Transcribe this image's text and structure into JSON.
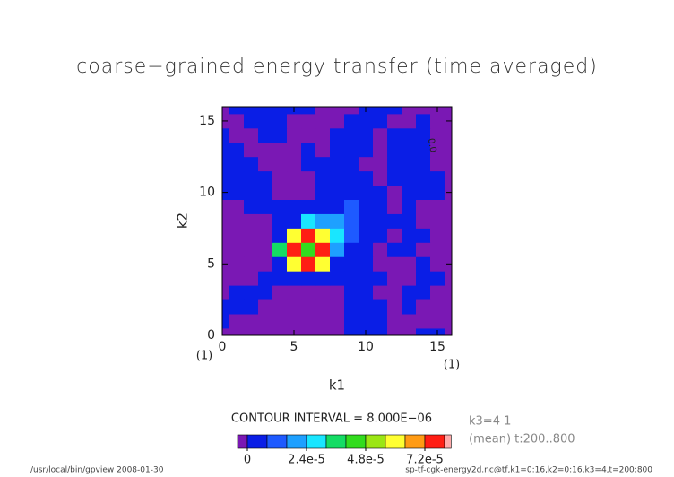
{
  "chart_data": {
    "type": "contour",
    "title": "coarse−grained energy transfer (time averaged)",
    "xlabel": "k1",
    "ylabel": "k2",
    "xunit": "(1)",
    "yunit": "(1)",
    "xlim": [
      0,
      16
    ],
    "ylim": [
      0,
      16
    ],
    "xticks": [
      0,
      5,
      10,
      15
    ],
    "yticks": [
      0,
      5,
      10,
      15
    ],
    "x": [
      0,
      1,
      2,
      3,
      4,
      5,
      6,
      7,
      8,
      9,
      10,
      11,
      12,
      13,
      14,
      15,
      16
    ],
    "y": [
      0,
      1,
      2,
      3,
      4,
      5,
      6,
      7,
      8,
      9,
      10,
      11,
      12,
      13,
      14,
      15,
      16
    ],
    "z": [
      [
        -4e-06,
        -4e-06,
        -4e-06,
        -4e-06,
        -4e-06,
        -4e-06,
        -4e-06,
        -4e-06,
        -4e-06,
        4e-06,
        4e-06,
        4e-06,
        -4e-06,
        -4e-06,
        4e-06,
        4e-06,
        -4e-06
      ],
      [
        4e-06,
        -4e-06,
        -4e-06,
        -4e-06,
        -4e-06,
        -4e-06,
        -4e-06,
        -4e-06,
        -4e-06,
        4e-06,
        4e-06,
        4e-06,
        -4e-06,
        -4e-06,
        -4e-06,
        -4e-06,
        -4e-06
      ],
      [
        4e-06,
        4e-06,
        4e-06,
        -4e-06,
        -4e-06,
        -4e-06,
        -4e-06,
        -4e-06,
        -4e-06,
        4e-06,
        4e-06,
        4e-06,
        -4e-06,
        4e-06,
        -4e-06,
        -4e-06,
        -4e-06
      ],
      [
        -4e-06,
        4e-06,
        4e-06,
        4e-06,
        -4e-06,
        -4e-06,
        -4e-06,
        -4e-06,
        -4e-06,
        4e-06,
        4e-06,
        -4e-06,
        -4e-06,
        4e-06,
        4e-06,
        -4e-06,
        -4e-06
      ],
      [
        -4e-06,
        -4e-06,
        -4e-06,
        4e-06,
        4e-06,
        4e-06,
        4e-06,
        4e-06,
        4e-06,
        4e-06,
        4e-06,
        4e-06,
        -4e-06,
        -4e-06,
        4e-06,
        4e-06,
        -4e-06
      ],
      [
        -4e-06,
        -4e-06,
        -4e-06,
        -4e-06,
        4e-06,
        6e-05,
        7.6e-05,
        6e-05,
        4e-06,
        4e-06,
        4e-06,
        -4e-06,
        -4e-06,
        -4e-06,
        4e-06,
        -4e-06,
        -4e-06
      ],
      [
        -4e-06,
        -4e-06,
        -4e-06,
        -4e-06,
        3.6e-05,
        7.6e-05,
        4.4e-05,
        7.6e-05,
        2e-05,
        4e-06,
        4e-06,
        -4e-06,
        4e-06,
        4e-06,
        -4e-06,
        -4e-06,
        -4e-06
      ],
      [
        -4e-06,
        -4e-06,
        -4e-06,
        -4e-06,
        4e-06,
        6e-05,
        7.6e-05,
        6e-05,
        2.8e-05,
        1.2e-05,
        4e-06,
        4e-06,
        -4e-06,
        4e-06,
        4e-06,
        -4e-06,
        -4e-06
      ],
      [
        -4e-06,
        -4e-06,
        -4e-06,
        -4e-06,
        4e-06,
        4e-06,
        2.8e-05,
        2e-05,
        2e-05,
        1.2e-05,
        4e-06,
        4e-06,
        4e-06,
        4e-06,
        -4e-06,
        -4e-06,
        -4e-06
      ],
      [
        -4e-06,
        -4e-06,
        4e-06,
        4e-06,
        4e-06,
        4e-06,
        4e-06,
        4e-06,
        4e-06,
        1.2e-05,
        4e-06,
        4e-06,
        -4e-06,
        4e-06,
        -4e-06,
        -4e-06,
        -4e-06
      ],
      [
        4e-06,
        4e-06,
        4e-06,
        4e-06,
        -4e-06,
        -4e-06,
        -4e-06,
        4e-06,
        4e-06,
        4e-06,
        4e-06,
        4e-06,
        -4e-06,
        4e-06,
        4e-06,
        4e-06,
        -4e-06
      ],
      [
        4e-06,
        4e-06,
        4e-06,
        4e-06,
        -4e-06,
        -4e-06,
        -4e-06,
        4e-06,
        4e-06,
        4e-06,
        4e-06,
        -4e-06,
        4e-06,
        4e-06,
        4e-06,
        4e-06,
        -4e-06
      ],
      [
        4e-06,
        4e-06,
        4e-06,
        -4e-06,
        -4e-06,
        -4e-06,
        4e-06,
        4e-06,
        4e-06,
        4e-06,
        -4e-06,
        -4e-06,
        4e-06,
        4e-06,
        4e-06,
        -4e-06,
        -4e-06
      ],
      [
        4e-06,
        4e-06,
        -4e-06,
        -4e-06,
        -4e-06,
        -4e-06,
        4e-06,
        -4e-06,
        4e-06,
        4e-06,
        4e-06,
        -4e-06,
        4e-06,
        4e-06,
        4e-06,
        -4e-06,
        -4e-06
      ],
      [
        4e-06,
        -4e-06,
        -4e-06,
        4e-06,
        4e-06,
        -4e-06,
        -4e-06,
        -4e-06,
        4e-06,
        4e-06,
        4e-06,
        -4e-06,
        4e-06,
        4e-06,
        4e-06,
        -4e-06,
        -4e-06
      ],
      [
        -4e-06,
        -4e-06,
        4e-06,
        4e-06,
        4e-06,
        -4e-06,
        -4e-06,
        -4e-06,
        -4e-06,
        4e-06,
        4e-06,
        4e-06,
        -4e-06,
        -4e-06,
        4e-06,
        -4e-06,
        -4e-06
      ],
      [
        -4e-06,
        4e-06,
        4e-06,
        4e-06,
        4e-06,
        4e-06,
        4e-06,
        -4e-06,
        -4e-06,
        -4e-06,
        4e-06,
        4e-06,
        4e-06,
        -4e-06,
        -4e-06,
        -4e-06,
        -4e-06
      ]
    ],
    "levels": [
      0,
      8e-06,
      1.6e-05,
      2.4e-05,
      3.2e-05,
      4e-05,
      4.8e-05,
      5.6e-05,
      6.4e-05,
      7.2e-05,
      8e-05
    ],
    "colors": [
      "#7a18b4",
      "#0a1ee6",
      "#1e5aff",
      "#1ea0ff",
      "#19e6ff",
      "#14dc64",
      "#32dc1e",
      "#9be614",
      "#ffff32",
      "#ff9b14",
      "#ff1e14",
      "#ffaaaa"
    ],
    "colorbar_ticks": [
      0,
      {
        "value": 2.4e-05,
        "label": "2.4e-5"
      },
      {
        "value": 4.8e-05,
        "label": "4.8e-5"
      },
      {
        "value": 7.2e-05,
        "label": "7.2e-5"
      }
    ],
    "contour_interval": "CONTOUR INTERVAL = 8.000E−06",
    "contour_label": "0.0",
    "slice_note": "k3=4 1",
    "mean_note": "(mean) t:200..800",
    "footer_left": "/usr/local/bin/gpview  2008-01-30",
    "footer_right": "sp-tf-cgk-energy2d.nc@tf,k1=0:16,k2=0:16,k3=4,t=200:800"
  }
}
